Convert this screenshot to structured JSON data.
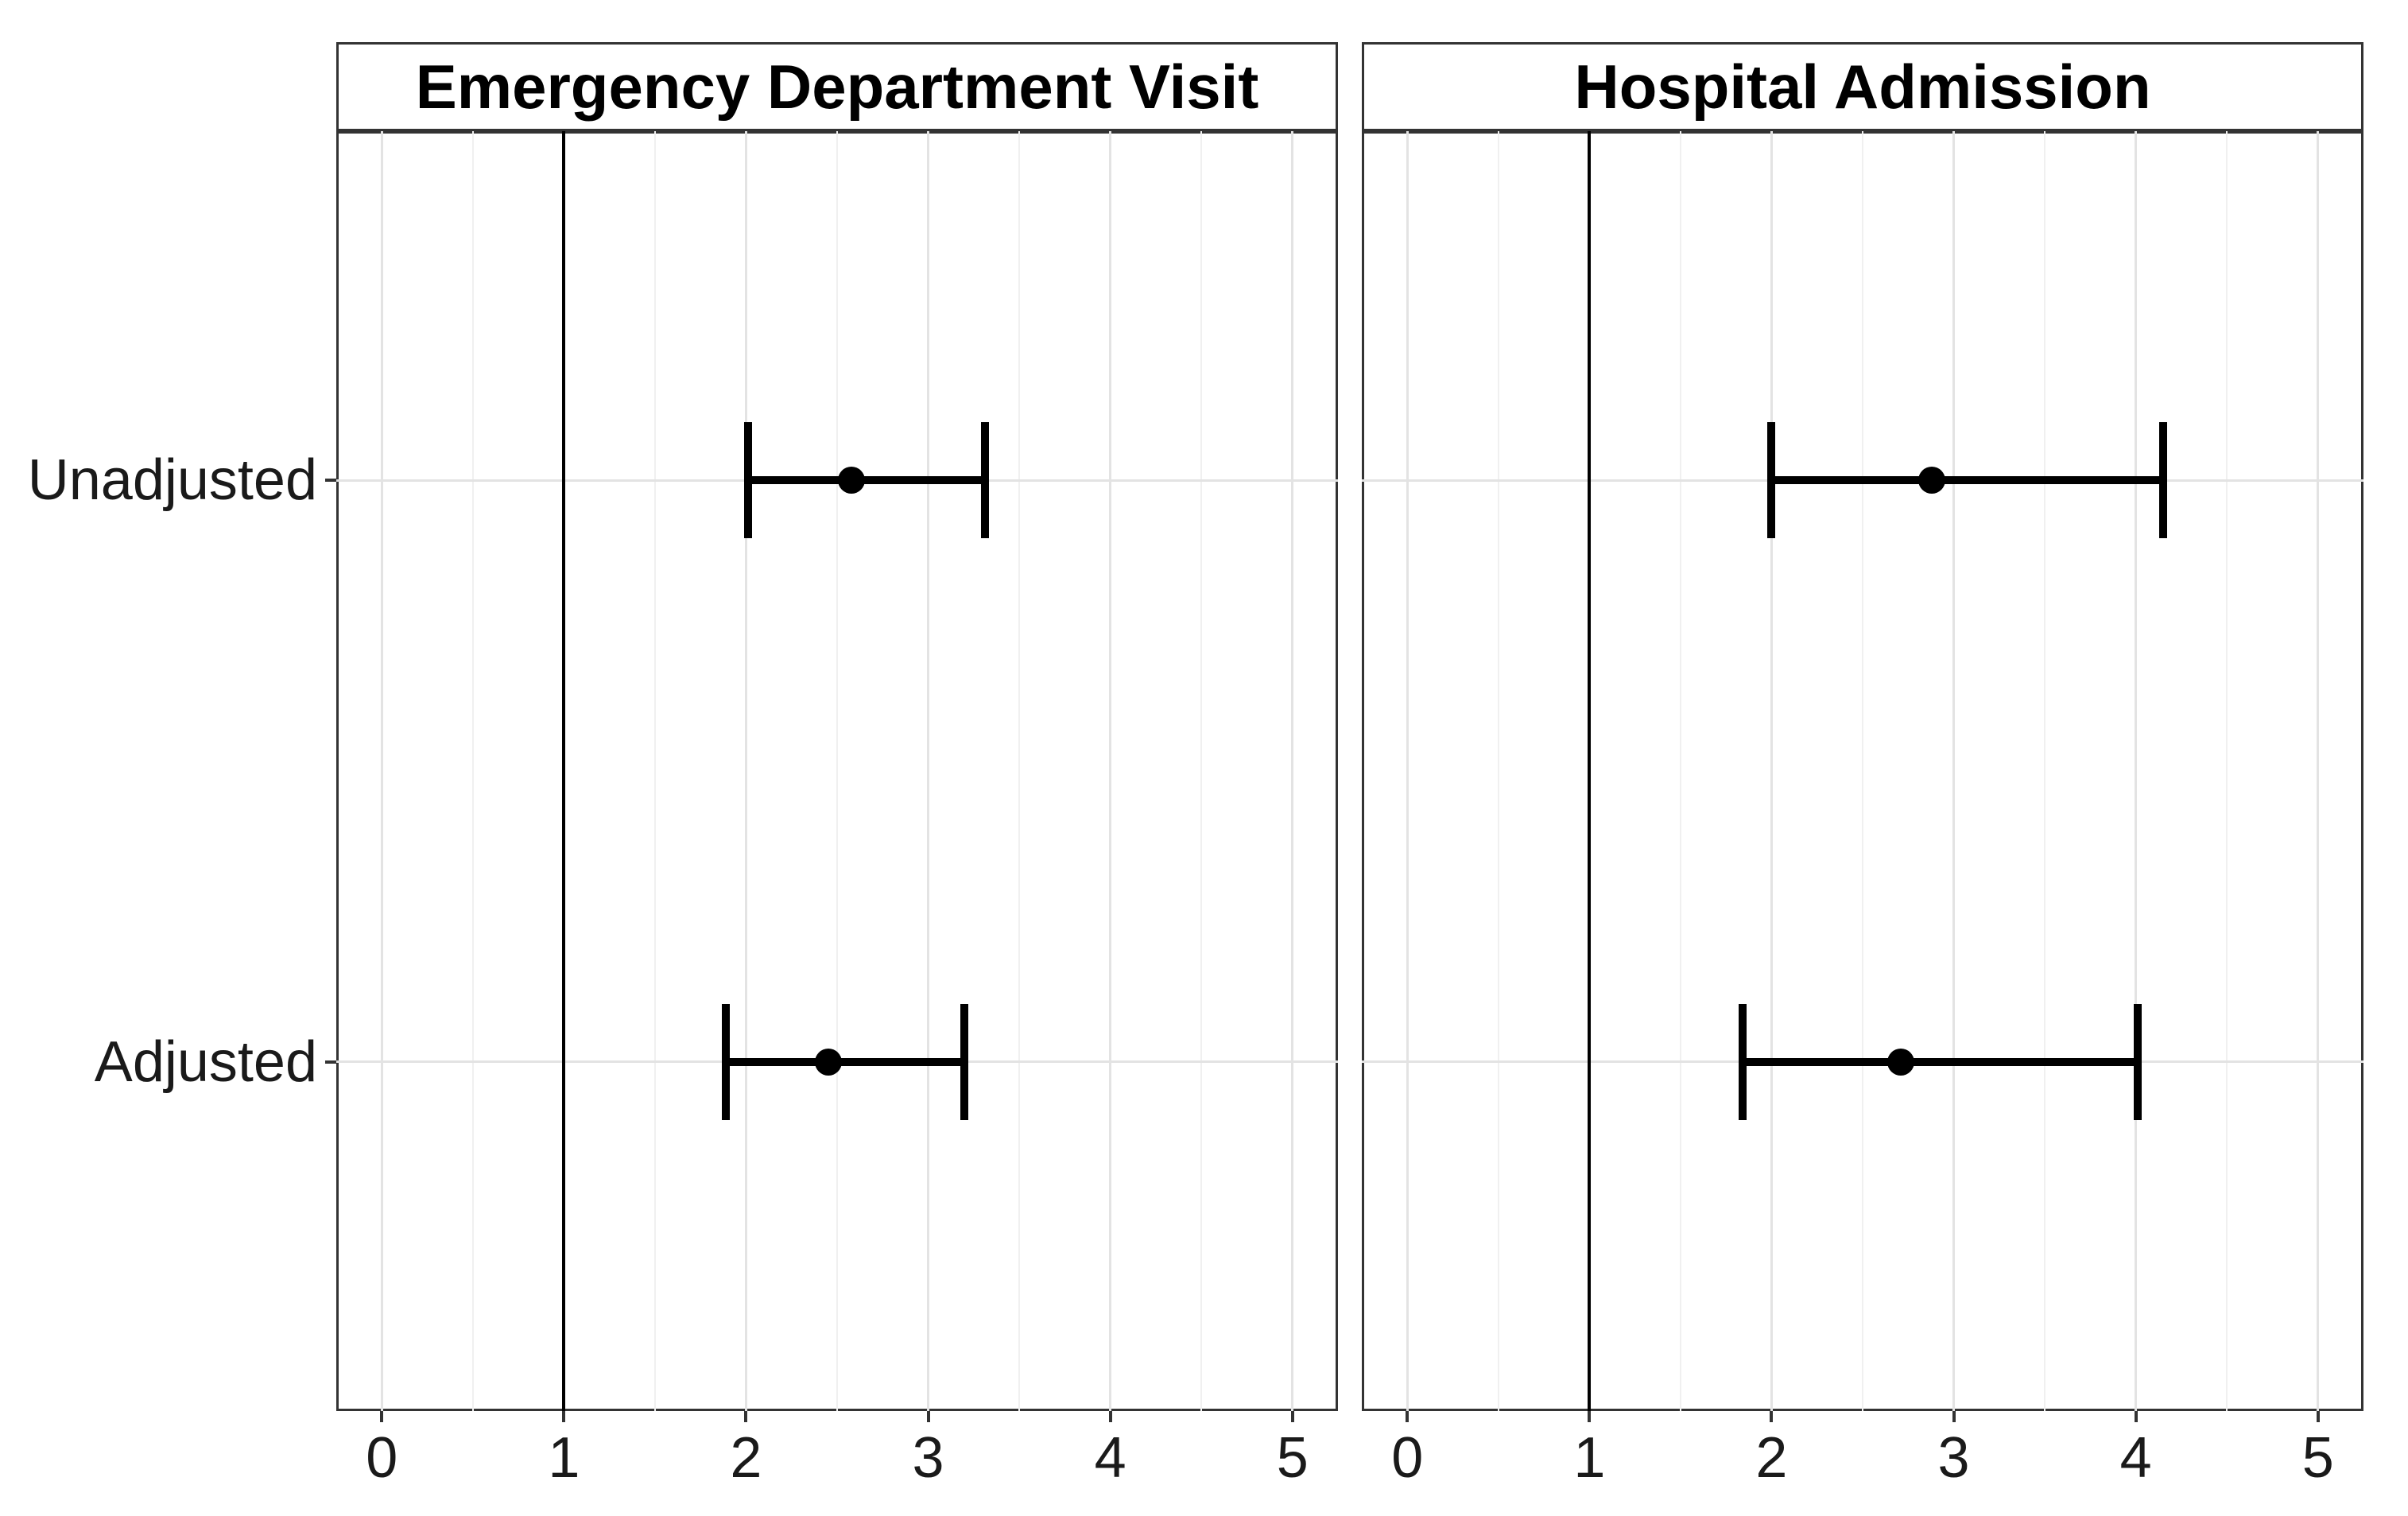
{
  "chart_data": {
    "type": "scatter",
    "subtype": "forest_plot_horizontal_errorbars",
    "orientation": "horizontal",
    "title": "",
    "xlabel": "",
    "ylabel": "",
    "categories": [
      "Unadjusted",
      "Adjusted"
    ],
    "x_ticks": [
      0,
      1,
      2,
      3,
      4,
      5
    ],
    "x_tick_labels": [
      "0",
      "1",
      "2",
      "3",
      "4",
      "5"
    ],
    "x_minor_ticks": [
      0.5,
      1.5,
      2.5,
      3.5,
      4.5
    ],
    "xlim": [
      -0.25,
      5.25
    ],
    "reference_line_x": 1,
    "grid": true,
    "legend": false,
    "marker": "filled-circle",
    "facets": [
      {
        "title": "Emergency Department Visit",
        "series": [
          {
            "category": "Unadjusted",
            "estimate": 2.58,
            "ci_lower": 2.01,
            "ci_upper": 3.31
          },
          {
            "category": "Adjusted",
            "estimate": 2.45,
            "ci_lower": 1.89,
            "ci_upper": 3.2
          }
        ]
      },
      {
        "title": "Hospital Admission",
        "series": [
          {
            "category": "Unadjusted",
            "estimate": 2.88,
            "ci_lower": 2.0,
            "ci_upper": 4.15
          },
          {
            "category": "Adjusted",
            "estimate": 2.71,
            "ci_lower": 1.84,
            "ci_upper": 4.01
          }
        ]
      }
    ],
    "colors": {
      "data": "#000000",
      "reference_line": "#000000",
      "grid_major": "#e3e3e3",
      "grid_minor": "#f0f0f0",
      "panel_border": "#333333",
      "tick_mark": "#333333",
      "axis_text": "#1a1a1a",
      "strip_text": "#000000",
      "background": "#ffffff"
    }
  }
}
